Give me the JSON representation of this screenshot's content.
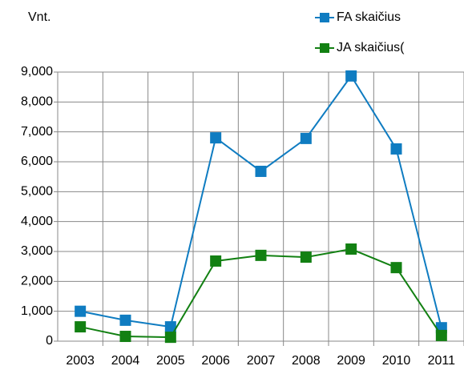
{
  "chart_data": {
    "type": "line",
    "y_label": "Vnt.",
    "categories": [
      "2003",
      "2004",
      "2005",
      "2006",
      "2007",
      "2008",
      "2009",
      "2010",
      "2011"
    ],
    "series": [
      {
        "name": "FA skaičius",
        "color": "#0f7cc1",
        "values": [
          1000,
          700,
          480,
          6800,
          5680,
          6780,
          8870,
          6430,
          450
        ]
      },
      {
        "name": "JA skaičius(",
        "color": "#128012",
        "values": [
          480,
          160,
          130,
          2680,
          2870,
          2810,
          3080,
          2460,
          190
        ]
      }
    ],
    "ylim": [
      0,
      9000
    ],
    "yticks": [
      0,
      {
        "value": 1000,
        "label": "1,000"
      },
      {
        "value": 2000,
        "label": "2,000"
      },
      {
        "value": 3000,
        "label": "3,000"
      },
      {
        "value": 4000,
        "label": "4,000"
      },
      {
        "value": 5000,
        "label": "5,000"
      },
      {
        "value": 6000,
        "label": "6,000"
      },
      {
        "value": 7000,
        "label": "7,000"
      },
      {
        "value": 8000,
        "label": "8,000"
      },
      {
        "value": 9000,
        "label": "9,000"
      }
    ],
    "grid": true
  }
}
